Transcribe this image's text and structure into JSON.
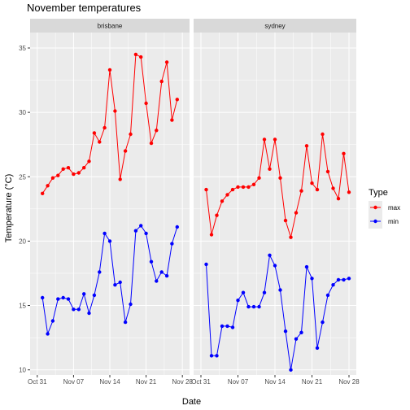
{
  "chart_data": {
    "type": "line",
    "title": "November temperatures",
    "xlabel": "Date",
    "ylabel": "Temperature (°C)",
    "ylim": [
      9.6,
      36.2
    ],
    "yticks": [
      10,
      15,
      20,
      25,
      30,
      35
    ],
    "xlim_day": [
      0,
      28
    ],
    "xticks": [
      {
        "day": 0,
        "label": "Oct 31"
      },
      {
        "day": 7,
        "label": "Nov 07"
      },
      {
        "day": 14,
        "label": "Nov 14"
      },
      {
        "day": 21,
        "label": "Nov 21"
      },
      {
        "day": 28,
        "label": "Nov 28"
      }
    ],
    "grid": true,
    "legend": {
      "title": "Type",
      "position": "right",
      "entries": [
        {
          "name": "max",
          "color": "#ff0000"
        },
        {
          "name": "min",
          "color": "#0000ff"
        }
      ]
    },
    "panels": [
      {
        "label": "brisbane",
        "series": [
          {
            "name": "max",
            "color": "#ff0000",
            "x": [
              1,
              2,
              3,
              4,
              5,
              6,
              7,
              8,
              9,
              10,
              11,
              12,
              13,
              14,
              15,
              16,
              17,
              18,
              19,
              20,
              21,
              22,
              23,
              24,
              25,
              26,
              27,
              28
            ],
            "values": [
              23.7,
              24.3,
              24.9,
              25.1,
              25.6,
              25.7,
              25.2,
              25.3,
              25.7,
              26.2,
              28.4,
              27.7,
              28.8,
              33.3,
              30.1,
              24.8,
              27.0,
              28.3,
              34.5,
              34.3,
              30.7,
              27.6,
              28.6,
              32.4,
              33.9,
              29.4,
              31.0,
              null
            ]
          },
          {
            "name": "min",
            "color": "#0000ff",
            "x": [
              1,
              2,
              3,
              4,
              5,
              6,
              7,
              8,
              9,
              10,
              11,
              12,
              13,
              14,
              15,
              16,
              17,
              18,
              19,
              20,
              21,
              22,
              23,
              24,
              25,
              26,
              27,
              28
            ],
            "values": [
              15.6,
              12.8,
              13.8,
              15.5,
              15.6,
              15.5,
              14.7,
              14.7,
              15.9,
              14.4,
              15.8,
              17.6,
              20.6,
              20.0,
              16.6,
              16.8,
              13.7,
              15.1,
              20.8,
              21.2,
              20.6,
              18.4,
              16.9,
              17.6,
              17.3,
              19.8,
              21.1,
              null
            ]
          }
        ]
      },
      {
        "label": "sydney",
        "series": [
          {
            "name": "max",
            "color": "#ff0000",
            "x": [
              1,
              2,
              3,
              4,
              5,
              6,
              7,
              8,
              9,
              10,
              11,
              12,
              13,
              14,
              15,
              16,
              17,
              18,
              19,
              20,
              21,
              22,
              23,
              24,
              25,
              26,
              27,
              28
            ],
            "values": [
              24.0,
              20.5,
              22.0,
              23.1,
              23.6,
              24.0,
              24.2,
              24.2,
              24.2,
              24.4,
              24.9,
              27.9,
              25.6,
              27.9,
              24.9,
              21.6,
              20.3,
              22.2,
              23.9,
              27.4,
              24.5,
              24.0,
              28.3,
              25.4,
              24.1,
              23.3,
              26.8,
              23.8
            ]
          },
          {
            "name": "min",
            "color": "#0000ff",
            "x": [
              1,
              2,
              3,
              4,
              5,
              6,
              7,
              8,
              9,
              10,
              11,
              12,
              13,
              14,
              15,
              16,
              17,
              18,
              19,
              20,
              21,
              22,
              23,
              24,
              25,
              26,
              27,
              28
            ],
            "values": [
              18.2,
              11.1,
              11.1,
              13.4,
              13.4,
              13.3,
              15.4,
              16.0,
              14.9,
              14.9,
              14.9,
              16.0,
              18.9,
              18.1,
              16.2,
              13.0,
              10.0,
              12.4,
              12.9,
              18.0,
              17.1,
              11.7,
              13.7,
              15.8,
              16.6,
              17.0,
              17.0,
              17.1
            ]
          }
        ]
      }
    ]
  }
}
